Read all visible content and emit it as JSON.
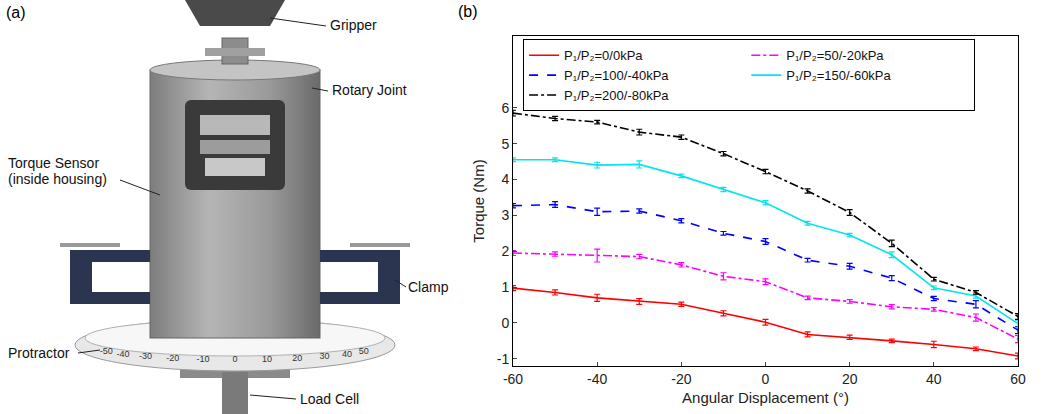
{
  "diagram": {
    "letter": "(a)",
    "labels": {
      "gripper": "Gripper",
      "rotary_joint": "Rotary Joint",
      "torque_sensor": [
        "Torque Sensor",
        "(inside housing)"
      ],
      "clamp": "Clamp",
      "protractor": "Protractor",
      "load_cell": "Load Cell"
    },
    "protractor_ticks": [
      -50,
      -40,
      -30,
      -20,
      -10,
      0,
      10,
      20,
      30,
      40,
      50
    ]
  },
  "chart_data": {
    "type": "line",
    "title": "(b)",
    "x_label": "Angular Displacement (°)",
    "y_label": "Torque (Nm)",
    "x": [
      -60,
      -50,
      -40,
      -30,
      -20,
      -10,
      0,
      10,
      20,
      30,
      40,
      50,
      60
    ],
    "xlim": [
      -60,
      60
    ],
    "xticks": [
      -60,
      -40,
      -20,
      0,
      20,
      40,
      60
    ],
    "ylim": [
      -1.2,
      8
    ],
    "yticks": [
      -1,
      0,
      1,
      2,
      3,
      4,
      5,
      6
    ],
    "grid": false,
    "legend": "top",
    "series": [
      {
        "name": "P₁/P₂=0/0kPa",
        "color": "#ff0000",
        "line_style": "solid",
        "marker": "none",
        "values": [
          0.97,
          0.85,
          0.7,
          0.6,
          0.52,
          0.27,
          0.02,
          -0.32,
          -0.4,
          -0.5,
          -0.6,
          -0.72,
          -0.92
        ],
        "errors": [
          0.07,
          0.07,
          0.1,
          0.08,
          0.06,
          0.07,
          0.08,
          0.07,
          0.06,
          0.05,
          0.09,
          0.05,
          0.08
        ]
      },
      {
        "name": "P₁/P₂=50/-20kPa",
        "color": "#ff00ff",
        "line_style": "dashdot",
        "marker": "none",
        "values": [
          1.95,
          1.92,
          1.88,
          1.85,
          1.62,
          1.3,
          1.15,
          0.7,
          0.6,
          0.45,
          0.38,
          0.15,
          -0.45
        ],
        "errors": [
          0.07,
          0.06,
          0.18,
          0.06,
          0.06,
          0.1,
          0.08,
          0.05,
          0.05,
          0.06,
          0.05,
          0.1,
          0.1
        ]
      },
      {
        "name": "P₁/P₂=100/-40kPa",
        "color": "#0000ff",
        "line_style": "dash",
        "marker": "none",
        "values": [
          3.27,
          3.3,
          3.1,
          3.12,
          2.85,
          2.5,
          2.27,
          1.75,
          1.58,
          1.25,
          0.68,
          0.52,
          -0.2
        ],
        "errors": [
          0.06,
          0.08,
          0.1,
          0.06,
          0.06,
          0.05,
          0.08,
          0.05,
          0.08,
          0.07,
          0.06,
          0.1,
          0.1
        ]
      },
      {
        "name": "P₁/P₂=150/-60kPa",
        "color": "#00e5ee",
        "line_style": "solid",
        "marker": "none",
        "values": [
          4.55,
          4.55,
          4.4,
          4.42,
          4.1,
          3.72,
          3.35,
          2.78,
          2.45,
          1.9,
          0.98,
          0.75,
          -0.02
        ],
        "errors": [
          0.05,
          0.05,
          0.08,
          0.1,
          0.05,
          0.06,
          0.06,
          0.05,
          0.05,
          0.08,
          0.05,
          0.06,
          0.1
        ]
      },
      {
        "name": "P₁/P₂=200/-80kPa",
        "color": "#000000",
        "line_style": "dashdot",
        "marker": "none",
        "values": [
          5.85,
          5.7,
          5.6,
          5.32,
          5.18,
          4.72,
          4.22,
          3.68,
          3.08,
          2.22,
          1.22,
          0.85,
          0.18
        ],
        "errors": [
          0.08,
          0.06,
          0.05,
          0.08,
          0.06,
          0.06,
          0.06,
          0.06,
          0.08,
          0.09,
          0.05,
          0.05,
          0.08
        ]
      }
    ]
  }
}
